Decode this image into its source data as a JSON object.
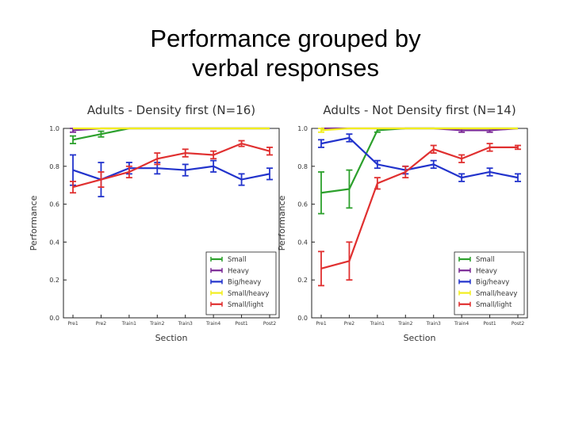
{
  "slide": {
    "title_line1": "Performance grouped by",
    "title_line2": "verbal responses"
  },
  "chart_data": [
    {
      "type": "line",
      "title": "Adults - Density first (N=16)",
      "xlabel": "Section",
      "ylabel": "Performance",
      "categories": [
        "Pre1",
        "Pre2",
        "Train1",
        "Train2",
        "Train3",
        "Train4",
        "Post1",
        "Post2"
      ],
      "ylim": [
        0.0,
        1.0
      ],
      "yticks": [
        "0.0",
        "0.2",
        "0.4",
        "0.6",
        "0.8",
        "1.0"
      ],
      "grid": false,
      "legend_position": "lower-right",
      "series": [
        {
          "name": "Small",
          "color": "#2ca02c",
          "values": [
            0.94,
            0.97,
            1.0,
            1.0,
            1.0,
            1.0,
            1.0,
            1.0
          ],
          "err": [
            0.02,
            0.015,
            0,
            0,
            0,
            0,
            0,
            0
          ]
        },
        {
          "name": "Heavy",
          "color": "#7b2a96",
          "values": [
            0.99,
            1.0,
            1.0,
            1.0,
            1.0,
            1.0,
            1.0,
            1.0
          ],
          "err": [
            0.01,
            0,
            0,
            0,
            0,
            0,
            0,
            0
          ]
        },
        {
          "name": "Big/heavy",
          "color": "#2233cc",
          "values": [
            0.78,
            0.73,
            0.79,
            0.79,
            0.78,
            0.8,
            0.73,
            0.76
          ],
          "err": [
            0.08,
            0.09,
            0.03,
            0.03,
            0.03,
            0.03,
            0.03,
            0.03
          ]
        },
        {
          "name": "Small/heavy",
          "color": "#f2ee1e",
          "values": [
            1.0,
            1.0,
            1.0,
            1.0,
            1.0,
            1.0,
            1.0,
            1.0
          ],
          "err": [
            0,
            0,
            0,
            0,
            0,
            0,
            0,
            0
          ]
        },
        {
          "name": "Small/light",
          "color": "#e03030",
          "values": [
            0.69,
            0.73,
            0.77,
            0.84,
            0.87,
            0.86,
            0.92,
            0.88
          ],
          "err": [
            0.03,
            0.04,
            0.03,
            0.03,
            0.02,
            0.02,
            0.015,
            0.02
          ]
        }
      ]
    },
    {
      "type": "line",
      "title": "Adults - Not Density first (N=14)",
      "xlabel": "Section",
      "ylabel": "Performance",
      "categories": [
        "Pre1",
        "Pre2",
        "Train1",
        "Train2",
        "Train3",
        "Train4",
        "Post1",
        "Post2"
      ],
      "ylim": [
        0.0,
        1.0
      ],
      "yticks": [
        "0.0",
        "0.2",
        "0.4",
        "0.6",
        "0.8",
        "1.0"
      ],
      "grid": false,
      "legend_position": "lower-right",
      "series": [
        {
          "name": "Small",
          "color": "#2ca02c",
          "values": [
            0.66,
            0.68,
            0.99,
            1.0,
            1.0,
            1.0,
            1.0,
            1.0
          ],
          "err": [
            0.11,
            0.1,
            0.01,
            0,
            0,
            0,
            0,
            0
          ]
        },
        {
          "name": "Heavy",
          "color": "#7b2a96",
          "values": [
            1.0,
            1.0,
            1.0,
            1.0,
            1.0,
            0.99,
            0.99,
            1.0
          ],
          "err": [
            0,
            0,
            0,
            0,
            0,
            0.01,
            0.01,
            0
          ]
        },
        {
          "name": "Big/heavy",
          "color": "#2233cc",
          "values": [
            0.92,
            0.95,
            0.81,
            0.78,
            0.81,
            0.74,
            0.77,
            0.74
          ],
          "err": [
            0.02,
            0.02,
            0.02,
            0.02,
            0.02,
            0.02,
            0.02,
            0.02
          ]
        },
        {
          "name": "Small/heavy",
          "color": "#f2ee1e",
          "values": [
            0.99,
            1.0,
            1.0,
            1.0,
            1.0,
            1.0,
            1.0,
            1.0
          ],
          "err": [
            0.01,
            0,
            0,
            0,
            0,
            0,
            0,
            0
          ]
        },
        {
          "name": "Small/light",
          "color": "#e03030",
          "values": [
            0.26,
            0.3,
            0.71,
            0.77,
            0.89,
            0.84,
            0.9,
            0.9
          ],
          "err": [
            0.09,
            0.1,
            0.03,
            0.03,
            0.02,
            0.02,
            0.02,
            0.01
          ]
        }
      ]
    }
  ]
}
